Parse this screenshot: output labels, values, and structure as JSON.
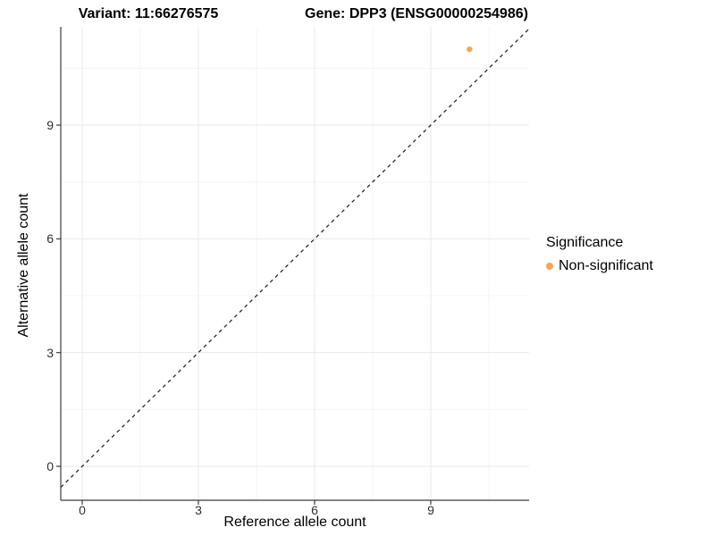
{
  "titles": {
    "variant": "Variant: 11:66276575",
    "gene": "Gene: DPP3 (ENSG00000254986)"
  },
  "axes": {
    "x_label": "Reference allele count",
    "y_label": "Alternative allele count",
    "x_tick_labels": [
      "0",
      "3",
      "6",
      "9"
    ],
    "y_tick_labels": [
      "0",
      "3",
      "6",
      "9"
    ]
  },
  "legend": {
    "title": "Significance",
    "items": [
      {
        "label": "Non-significant",
        "color": "#F7A54F"
      }
    ]
  },
  "colors": {
    "point_orange": "#F7A54F",
    "grid_major": "#e9e9e9",
    "grid_minor": "#f4f4f4",
    "axis_line": "#3c3c3c",
    "identity_line": "#1a1a1a",
    "background": "#ffffff"
  },
  "chart_data": {
    "type": "scatter",
    "title": "Variant: 11:66276575 — Gene: DPP3 (ENSG00000254986)",
    "xlabel": "Reference allele count",
    "ylabel": "Alternative allele count",
    "xlim": [
      -0.55,
      11.55
    ],
    "ylim": [
      -0.9,
      11.6
    ],
    "x_ticks": [
      0,
      3,
      6,
      9
    ],
    "y_ticks": [
      0,
      3,
      6,
      9
    ],
    "x_minor_ticks": [
      1.5,
      4.5,
      7.5,
      10.5
    ],
    "y_minor_ticks": [
      1.5,
      4.5,
      7.5,
      10.5
    ],
    "grid": "on",
    "legend_position": "right-center",
    "series": [
      {
        "name": "Non-significant",
        "color": "#F7A54F",
        "points": [
          {
            "x": 10,
            "y": 11
          }
        ]
      }
    ],
    "annotations": [
      {
        "type": "abline",
        "label": "identity line y = x",
        "style": "dashed",
        "color": "#1a1a1a"
      }
    ]
  }
}
